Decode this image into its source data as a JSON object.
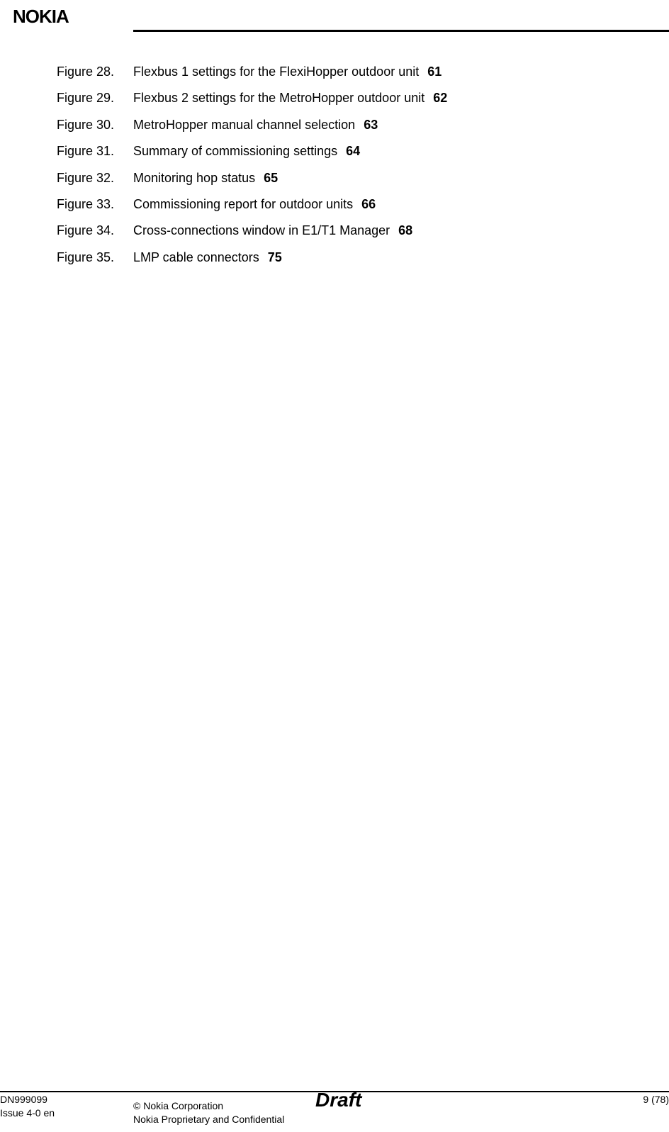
{
  "header": {
    "logo_text": "NOKIA"
  },
  "figures": [
    {
      "label": "Figure 28.",
      "title": "Flexbus 1 settings for the FlexiHopper outdoor unit",
      "page": "61"
    },
    {
      "label": "Figure 29.",
      "title": "Flexbus 2 settings for the MetroHopper outdoor unit",
      "page": "62"
    },
    {
      "label": "Figure 30.",
      "title": "MetroHopper manual channel selection",
      "page": "63"
    },
    {
      "label": "Figure 31.",
      "title": "Summary of commissioning settings",
      "page": "64"
    },
    {
      "label": "Figure 32.",
      "title": "Monitoring hop status",
      "page": "65"
    },
    {
      "label": "Figure 33.",
      "title": "Commissioning report for outdoor units",
      "page": "66"
    },
    {
      "label": "Figure 34.",
      "title": "Cross-connections window in E1/T1 Manager",
      "page": "68"
    },
    {
      "label": "Figure 35.",
      "title": "LMP cable connectors",
      "page": "75"
    }
  ],
  "footer": {
    "doc_number": "DN999099",
    "issue": "Issue 4-0 en",
    "copyright": "© Nokia Corporation",
    "confidential": "Nokia Proprietary and Confidential",
    "draft": "Draft",
    "page": "9 (78)"
  },
  "colors": {
    "text": "#000000",
    "background": "#ffffff",
    "rule": "#000000"
  },
  "typography": {
    "body_fontsize": 18,
    "footer_fontsize": 14,
    "draft_fontsize": 28,
    "logo_fontsize": 26
  }
}
